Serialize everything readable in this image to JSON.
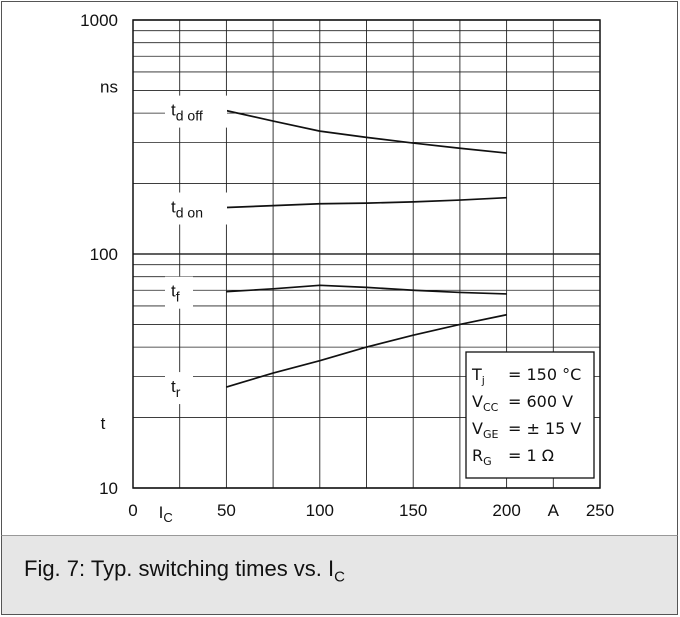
{
  "caption": {
    "text": "Fig. 7: Typ. switching times vs. I",
    "subscript": "C"
  },
  "chart_data": {
    "type": "line",
    "title": "Fig. 7: Typ. switching times vs. IC",
    "xlabel": "IC",
    "xunit": "A",
    "ylabel": "t",
    "yunit": "ns",
    "xlim": [
      0,
      250
    ],
    "ylim": [
      10,
      1000
    ],
    "yscale": "log",
    "grid": true,
    "x_ticks": [
      {
        "value": 0,
        "label": "0"
      },
      {
        "value": 50,
        "label": "50"
      },
      {
        "value": 100,
        "label": "100"
      },
      {
        "value": 150,
        "label": "150"
      },
      {
        "value": 200,
        "label": "200"
      },
      {
        "value": 250,
        "label": "250"
      }
    ],
    "y_ticks": [
      {
        "value": 10,
        "label": "10"
      },
      {
        "value": 100,
        "label": "100"
      },
      {
        "value": 1000,
        "label": "1000"
      }
    ],
    "series": [
      {
        "name": "t_d off",
        "main": "t",
        "sub": "d off",
        "x": [
          50,
          75,
          100,
          125,
          150,
          175,
          200
        ],
        "y": [
          410,
          370,
          335,
          315,
          298,
          283,
          270
        ]
      },
      {
        "name": "t_d on",
        "main": "t",
        "sub": "d on",
        "x": [
          50,
          75,
          100,
          125,
          150,
          175,
          200
        ],
        "y": [
          158,
          161,
          164,
          165,
          167,
          170,
          174
        ]
      },
      {
        "name": "t_f",
        "main": "t",
        "sub": "f",
        "x": [
          50,
          75,
          100,
          125,
          150,
          175,
          200
        ],
        "y": [
          69,
          71,
          73.5,
          72,
          70,
          68.5,
          67.5
        ]
      },
      {
        "name": "t_r",
        "main": "t",
        "sub": "r",
        "x": [
          50,
          75,
          100,
          125,
          150,
          175,
          200
        ],
        "y": [
          27,
          31,
          35,
          40,
          45,
          50,
          55
        ]
      }
    ],
    "conditions": [
      {
        "main": "T",
        "sub": "j",
        "value": "= 150 °C"
      },
      {
        "main": "V",
        "sub": "CC",
        "value": "= 600 V"
      },
      {
        "main": "V",
        "sub": "GE",
        "value": "= ± 15 V"
      },
      {
        "main": "R",
        "sub": "G",
        "value": "= 1 Ω"
      }
    ]
  }
}
